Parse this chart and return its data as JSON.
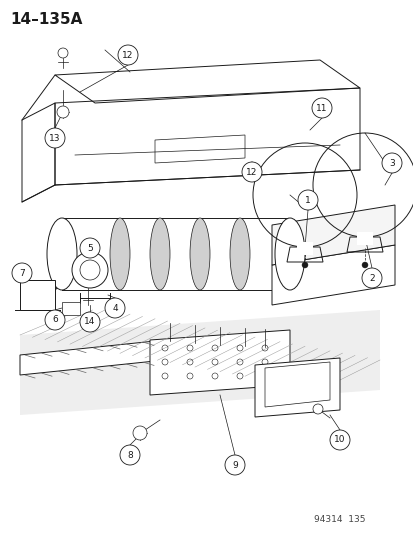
{
  "title": "14–135A",
  "footer": "94314  135",
  "bg_color": "#ffffff",
  "line_color": "#1a1a1a",
  "title_fontsize": 11,
  "footer_fontsize": 6.5,
  "callout_fontsize": 6.5,
  "callout_r": 0.018
}
